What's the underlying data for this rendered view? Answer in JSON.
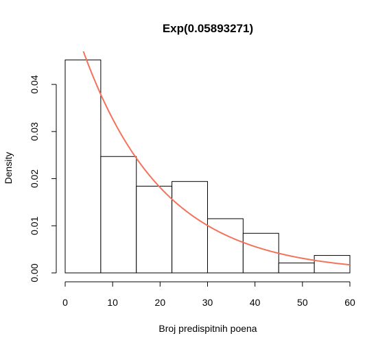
{
  "chart_data": {
    "type": "bar",
    "title": "Exp(0.05893271)",
    "xlabel": "Broj predispitnih poena",
    "ylabel": "Density",
    "bins": [
      {
        "x0": 0,
        "x1": 7.5,
        "density": 0.0452
      },
      {
        "x0": 7.5,
        "x1": 15,
        "density": 0.0247
      },
      {
        "x0": 15,
        "x1": 22.5,
        "density": 0.0184
      },
      {
        "x0": 22.5,
        "x1": 30,
        "density": 0.0194
      },
      {
        "x0": 30,
        "x1": 37.5,
        "density": 0.0115
      },
      {
        "x0": 37.5,
        "x1": 45,
        "density": 0.0084
      },
      {
        "x0": 45,
        "x1": 52.5,
        "density": 0.0021
      },
      {
        "x0": 52.5,
        "x1": 60,
        "density": 0.0037
      }
    ],
    "curve": {
      "name": "",
      "type": "exponential-density",
      "rate": 0.05893271,
      "color": "#f4715a"
    },
    "xlim": [
      0,
      60
    ],
    "ylim": [
      0,
      0.047
    ],
    "xticks": [
      {
        "value": 0,
        "label": "0"
      },
      {
        "value": 10,
        "label": "10"
      },
      {
        "value": 20,
        "label": "20"
      },
      {
        "value": 30,
        "label": "30"
      },
      {
        "value": 40,
        "label": "40"
      },
      {
        "value": 50,
        "label": "50"
      },
      {
        "value": 60,
        "label": "60"
      }
    ],
    "yticks": [
      {
        "value": 0,
        "label": "0.00"
      },
      {
        "value": 0.01,
        "label": "0.01"
      },
      {
        "value": 0.02,
        "label": "0.02"
      },
      {
        "value": 0.03,
        "label": "0.03"
      },
      {
        "value": 0.04,
        "label": "0.04"
      }
    ],
    "grid": false
  }
}
